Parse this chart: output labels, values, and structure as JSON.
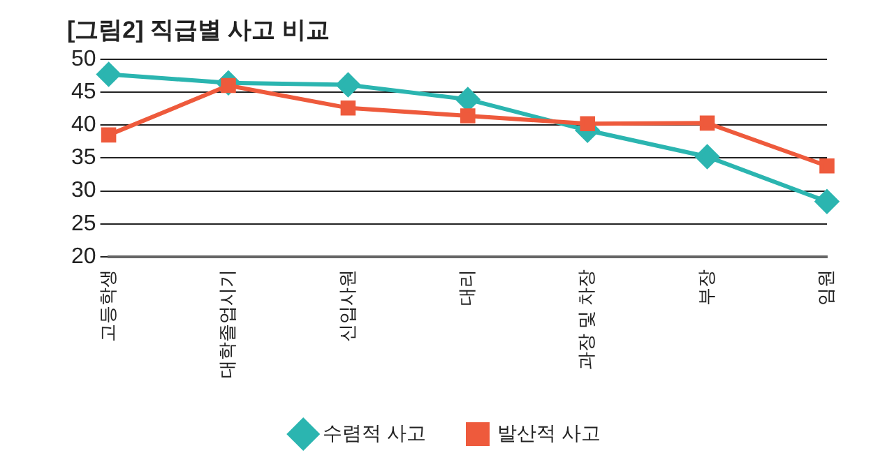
{
  "chart_data": {
    "type": "line",
    "title": "[그림2] 직급별 사고 비교",
    "categories": [
      "고등학생",
      "대학졸업시기",
      "신입사원",
      "대리",
      "과장 및 차장",
      "부장",
      "임원"
    ],
    "series": [
      {
        "name": "수렴적 사고",
        "color": "#2bb5b0",
        "marker": "diamond",
        "values": [
          47.7,
          46.4,
          46.1,
          43.9,
          39.2,
          35.2,
          28.4
        ]
      },
      {
        "name": "발산적 사고",
        "color": "#ee5a3c",
        "marker": "square",
        "values": [
          38.5,
          46.0,
          42.6,
          41.4,
          40.2,
          40.3,
          33.8
        ]
      }
    ],
    "ylim": [
      20,
      50
    ],
    "yticks": [
      20,
      25,
      30,
      35,
      40,
      45,
      50
    ],
    "grid": "y",
    "legend": "bottom"
  }
}
